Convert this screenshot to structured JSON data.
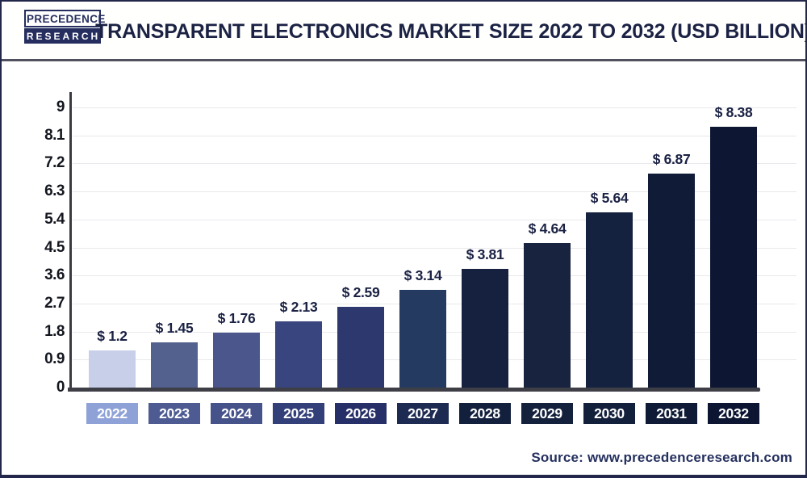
{
  "header": {
    "logo_line1": "PRECEDENCE",
    "logo_line2": "RESEARCH",
    "title": "TRANSPARENT ELECTRONICS MARKET SIZE 2022 TO 2032 (USD BILLION)"
  },
  "source": "Source: www.precedenceresearch.com",
  "chart_data": {
    "type": "bar",
    "title": "Transparent Electronics Market Size 2022 to 2032 (USD Billion)",
    "categories": [
      "2022",
      "2023",
      "2024",
      "2025",
      "2026",
      "2027",
      "2028",
      "2029",
      "2030",
      "2031",
      "2032"
    ],
    "values": [
      1.2,
      1.45,
      1.76,
      2.13,
      2.59,
      3.14,
      3.81,
      4.64,
      5.64,
      6.87,
      8.38
    ],
    "value_labels": [
      "$ 1.2",
      "$ 1.45",
      "$ 1.76",
      "$ 2.13",
      "$ 2.59",
      "$ 3.14",
      "$ 3.81",
      "$ 4.64",
      "$ 5.64",
      "$ 6.87",
      "$ 8.38"
    ],
    "xlabel": "",
    "ylabel": "",
    "ylim": [
      0,
      9
    ],
    "yticks": [
      0,
      0.9,
      1.8,
      2.7,
      3.6,
      4.5,
      5.4,
      6.3,
      7.2,
      8.1,
      9
    ],
    "ytick_labels": [
      "0",
      "0.9",
      "1.8",
      "2.7",
      "3.6",
      "4.5",
      "5.4",
      "6.3",
      "7.2",
      "8.1",
      "9"
    ],
    "grid": true,
    "legend_position": "none",
    "bar_colors": [
      "#c7cfe9",
      "#53618f",
      "#4a568c",
      "#39457e",
      "#2d386f",
      "#243a60",
      "#15213f",
      "#17233f",
      "#15223f",
      "#101b38",
      "#0d1733"
    ],
    "tick_box_colors": [
      "#8fa2d8",
      "#4d5b92",
      "#46528a",
      "#333f78",
      "#272f68",
      "#1d2b52",
      "#13203d",
      "#14213d",
      "#13203c",
      "#0f1a36",
      "#0c1531"
    ],
    "value_label_color": "#1a2143",
    "axis_color": "#3a3a42",
    "gridline_color": "#e9e9ed"
  }
}
